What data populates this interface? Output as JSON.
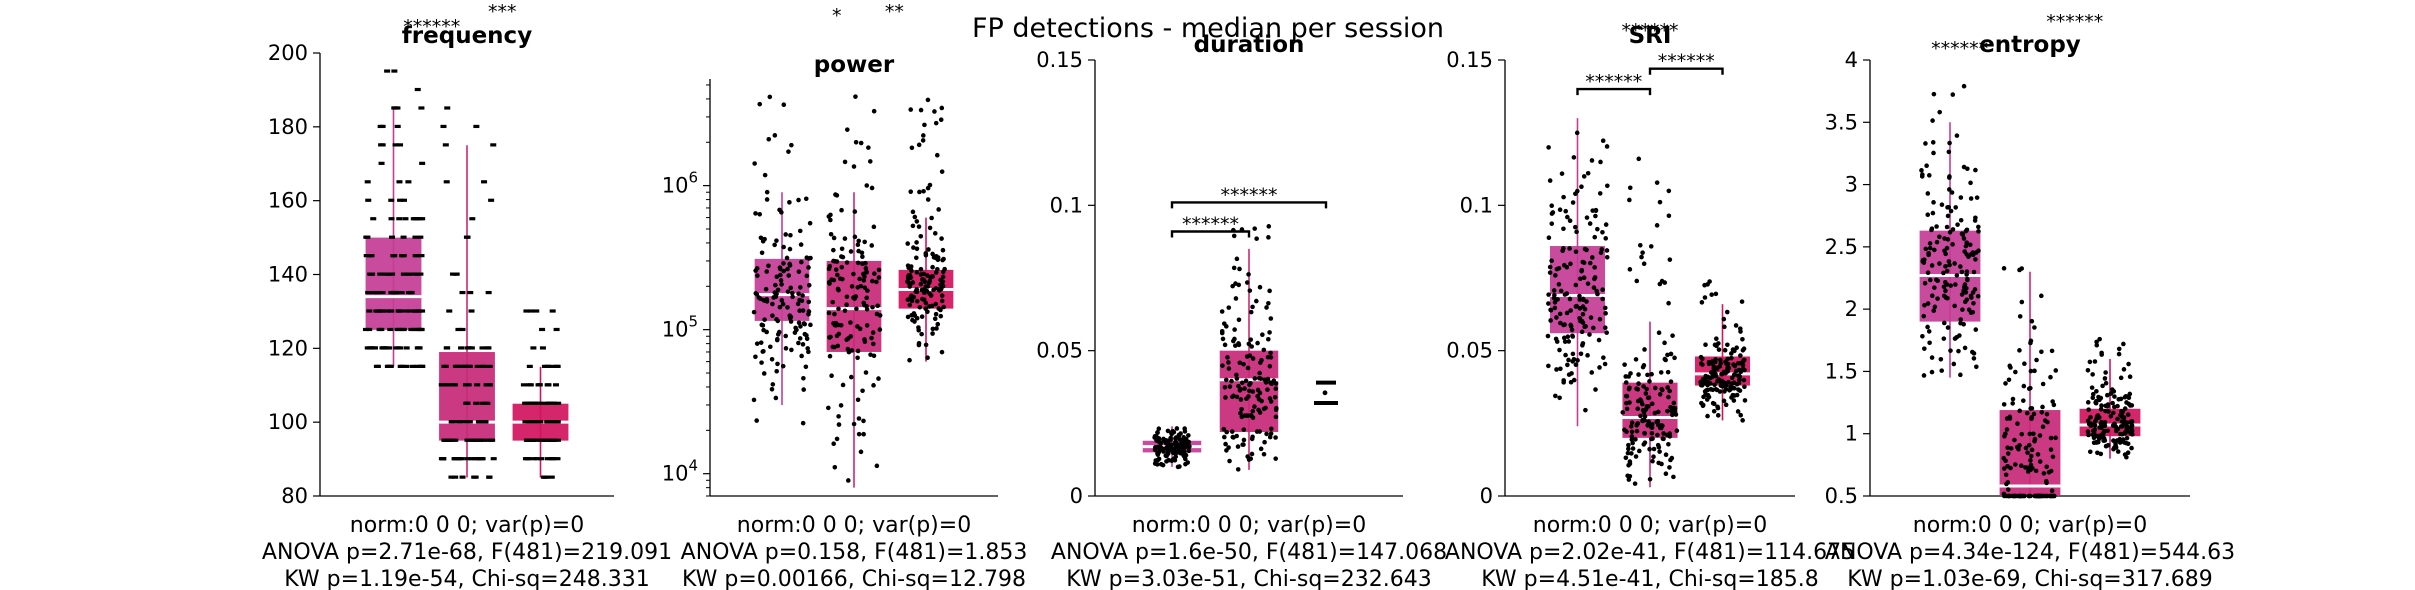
{
  "figure": {
    "suptitle": "FP detections - median per session",
    "colors": {
      "c1": "#c43c96",
      "c2": "#c82878",
      "c3": "#d2145e",
      "median": "#ffffff",
      "points": "#000000"
    }
  },
  "chart_data": [
    {
      "type": "box",
      "title": "frequency",
      "yscale": "linear",
      "ylim": [
        80,
        200
      ],
      "yticks": [
        80,
        100,
        120,
        140,
        160,
        180,
        200
      ],
      "ytick_labels": [
        "80",
        "100",
        "120",
        "140",
        "160",
        "180",
        "200"
      ],
      "boxes": [
        {
          "q1": 125,
          "median": 134,
          "q3": 150,
          "whisker_low": 115,
          "whisker_high": 185,
          "n": 150,
          "spread": 115,
          "discrete": 5,
          "seed": 11,
          "tail_hi": 197
        },
        {
          "q1": 95,
          "median": 100,
          "q3": 119,
          "whisker_low": 85,
          "whisker_high": 175,
          "n": 130,
          "spread": 105,
          "discrete": 5,
          "seed": 23,
          "tail_hi": 190
        },
        {
          "q1": 95,
          "median": 100,
          "q3": 105,
          "whisker_low": 85,
          "whisker_high": 115,
          "n": 110,
          "spread": 70,
          "discrete": 5,
          "seed": 37,
          "tail_hi": 130
        }
      ],
      "brackets": [],
      "annotations": [
        "******",
        "***"
      ],
      "xlabel": "norm:0   0   0; var(p)=0",
      "stats": [
        "ANOVA p=2.71e-68, F(481)=219.091",
        "KW p=1.19e-54, Chi-sq=248.331"
      ]
    },
    {
      "type": "box",
      "title": "power",
      "yscale": "log",
      "ylim": [
        7000,
        5500000
      ],
      "yticks": [
        10000,
        100000,
        1000000
      ],
      "ytick_labels": [
        "10^4",
        "10^5",
        "10^6"
      ],
      "boxes": [
        {
          "q1": 115000,
          "median": 175000,
          "q3": 310000,
          "whisker_low": 30000,
          "whisker_high": 900000,
          "n": 150,
          "spread": 115,
          "discrete": 0,
          "seed": 41,
          "tail_hi": 4800000,
          "tail_lo": 20000
        },
        {
          "q1": 70000,
          "median": 140000,
          "q3": 300000,
          "whisker_low": 8000,
          "whisker_high": 900000,
          "n": 150,
          "spread": 105,
          "discrete": 0,
          "seed": 53,
          "tail_hi": 5000000,
          "tail_lo": 8000
        },
        {
          "q1": 140000,
          "median": 190000,
          "q3": 260000,
          "whisker_low": 60000,
          "whisker_high": 600000,
          "n": 150,
          "spread": 75,
          "discrete": 0,
          "seed": 67,
          "tail_hi": 4500000
        }
      ],
      "brackets": [],
      "annotations": [
        "*",
        "**"
      ],
      "xlabel": "norm:0   0   0; var(p)=0",
      "stats": [
        "ANOVA p=0.158, F(481)=1.853",
        "KW p=0.00166, Chi-sq=12.798"
      ]
    },
    {
      "type": "box",
      "title": "duration",
      "yscale": "linear",
      "ylim": [
        0,
        0.15
      ],
      "yticks": [
        0,
        0.05,
        0.1,
        0.15
      ],
      "ytick_labels": [
        "0",
        "0.05",
        "0.1",
        "0.15"
      ],
      "boxes": [
        {
          "q1": 0.015,
          "median": 0.017,
          "q3": 0.019,
          "whisker_low": 0.01,
          "whisker_high": 0.024,
          "n": 150,
          "spread": 70,
          "discrete": 0,
          "seed": 71
        },
        {
          "q1": 0.022,
          "median": 0.04,
          "q3": 0.05,
          "whisker_low": 0.009,
          "whisker_high": 0.085,
          "n": 160,
          "spread": 110,
          "discrete": 0,
          "seed": 83,
          "tail_hi": 0.095
        },
        {
          "q1": 0.032,
          "median": 0.032,
          "q3": 0.039,
          "whisker_low": 0.032,
          "whisker_high": 0.039,
          "n": 3,
          "spread": 25,
          "discrete": 0,
          "seed": 97,
          "is_bars": true
        }
      ],
      "brackets": [
        {
          "from": 0,
          "to": 1,
          "y": 0.091,
          "label": "******"
        },
        {
          "from": 0,
          "to": 2,
          "y": 0.101,
          "label": "******"
        }
      ],
      "annotations": [],
      "xlabel": "norm:0   0   0; var(p)=0",
      "stats": [
        "ANOVA p=1.6e-50, F(481)=147.068",
        "KW p=3.03e-51, Chi-sq=232.643"
      ]
    },
    {
      "type": "box",
      "title": "SRI",
      "yscale": "linear",
      "ylim": [
        0,
        0.15
      ],
      "yticks": [
        0,
        0.05,
        0.1,
        0.15
      ],
      "ytick_labels": [
        "0",
        "0.05",
        "0.1",
        "0.15"
      ],
      "boxes": [
        {
          "q1": 0.056,
          "median": 0.069,
          "q3": 0.086,
          "whisker_low": 0.024,
          "whisker_high": 0.13,
          "n": 170,
          "spread": 120,
          "discrete": 0,
          "seed": 101
        },
        {
          "q1": 0.02,
          "median": 0.027,
          "q3": 0.039,
          "whisker_low": 0.003,
          "whisker_high": 0.06,
          "n": 170,
          "spread": 110,
          "discrete": 0,
          "seed": 113,
          "tail_hi": 0.117
        },
        {
          "q1": 0.038,
          "median": 0.042,
          "q3": 0.048,
          "whisker_low": 0.026,
          "whisker_high": 0.066,
          "n": 170,
          "spread": 90,
          "discrete": 0,
          "seed": 127,
          "tail_hi": 0.074
        }
      ],
      "brackets": [
        {
          "from": 0,
          "to": 1,
          "y": 0.14,
          "label": "******"
        },
        {
          "from": 1,
          "to": 2,
          "y": 0.147,
          "label": "******"
        }
      ],
      "annotations": [
        "******"
      ],
      "xlabel": "norm:0   0   0; var(p)=0",
      "stats": [
        "ANOVA p=2.02e-41, F(481)=114.675",
        "KW p=4.51e-41, Chi-sq=185.8"
      ]
    },
    {
      "type": "box",
      "title": "entropy",
      "yscale": "linear",
      "ylim": [
        0.5,
        4
      ],
      "yticks": [
        0.5,
        1,
        1.5,
        2,
        2.5,
        3,
        3.5,
        4
      ],
      "ytick_labels": [
        "0.5",
        "1",
        "1.5",
        "2",
        "2.5",
        "3",
        "3.5",
        "4"
      ],
      "boxes": [
        {
          "q1": 1.9,
          "median": 2.27,
          "q3": 2.63,
          "whisker_low": 1.45,
          "whisker_high": 3.5,
          "n": 170,
          "spread": 115,
          "discrete": 0,
          "seed": 131,
          "tail_hi": 3.85
        },
        {
          "q1": 0.5,
          "median": 0.58,
          "q3": 1.19,
          "whisker_low": 0.5,
          "whisker_high": 2.3,
          "n": 160,
          "spread": 105,
          "discrete": 0,
          "seed": 139,
          "tail_hi": 2.35
        },
        {
          "q1": 0.98,
          "median": 1.07,
          "q3": 1.2,
          "whisker_low": 0.8,
          "whisker_high": 1.6,
          "n": 170,
          "spread": 90,
          "discrete": 0,
          "seed": 149,
          "tail_hi": 1.78
        }
      ],
      "brackets": [],
      "annotations": [
        "******",
        "******",
        "******"
      ],
      "xlabel": "norm:0   0   0; var(p)=0",
      "stats": [
        "ANOVA p=4.34e-124, F(481)=544.63",
        "KW p=1.03e-69, Chi-sq=317.689"
      ]
    }
  ]
}
